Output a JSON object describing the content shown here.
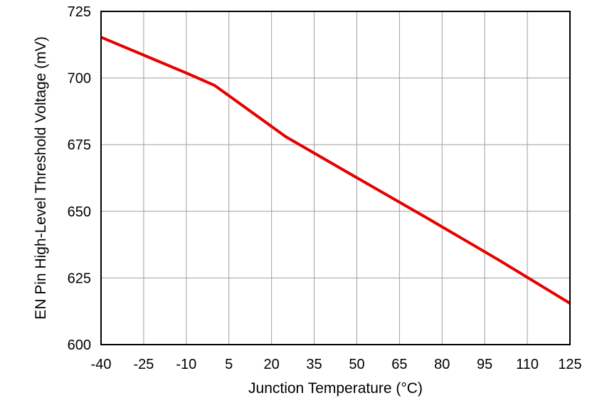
{
  "chart_data": {
    "type": "line",
    "title": "",
    "xlabel": "Junction Temperature (°C)",
    "ylabel": "EN Pin High-Level Threshold Voltage (mV)",
    "xlim": [
      -40,
      125
    ],
    "ylim": [
      600,
      725
    ],
    "xticks": [
      -40,
      -25,
      -10,
      5,
      20,
      35,
      50,
      65,
      80,
      95,
      110,
      125
    ],
    "yticks": [
      600,
      625,
      650,
      675,
      700,
      725
    ],
    "xtick_labels": [
      "-40",
      "-25",
      "-10",
      "5",
      "20",
      "35",
      "50",
      "65",
      "80",
      "95",
      "110",
      "125"
    ],
    "ytick_labels": [
      "600",
      "625",
      "650",
      "675",
      "700",
      "725"
    ],
    "grid": true,
    "legend": "none",
    "series": [
      {
        "color": "#e60000",
        "x": [
          -40,
          -25,
          -10,
          0,
          25,
          50,
          75,
          100,
          125
        ],
        "y": [
          715.3,
          708.6,
          701.9,
          697.2,
          678.0,
          662.6,
          647.3,
          631.7,
          615.5
        ]
      }
    ]
  }
}
